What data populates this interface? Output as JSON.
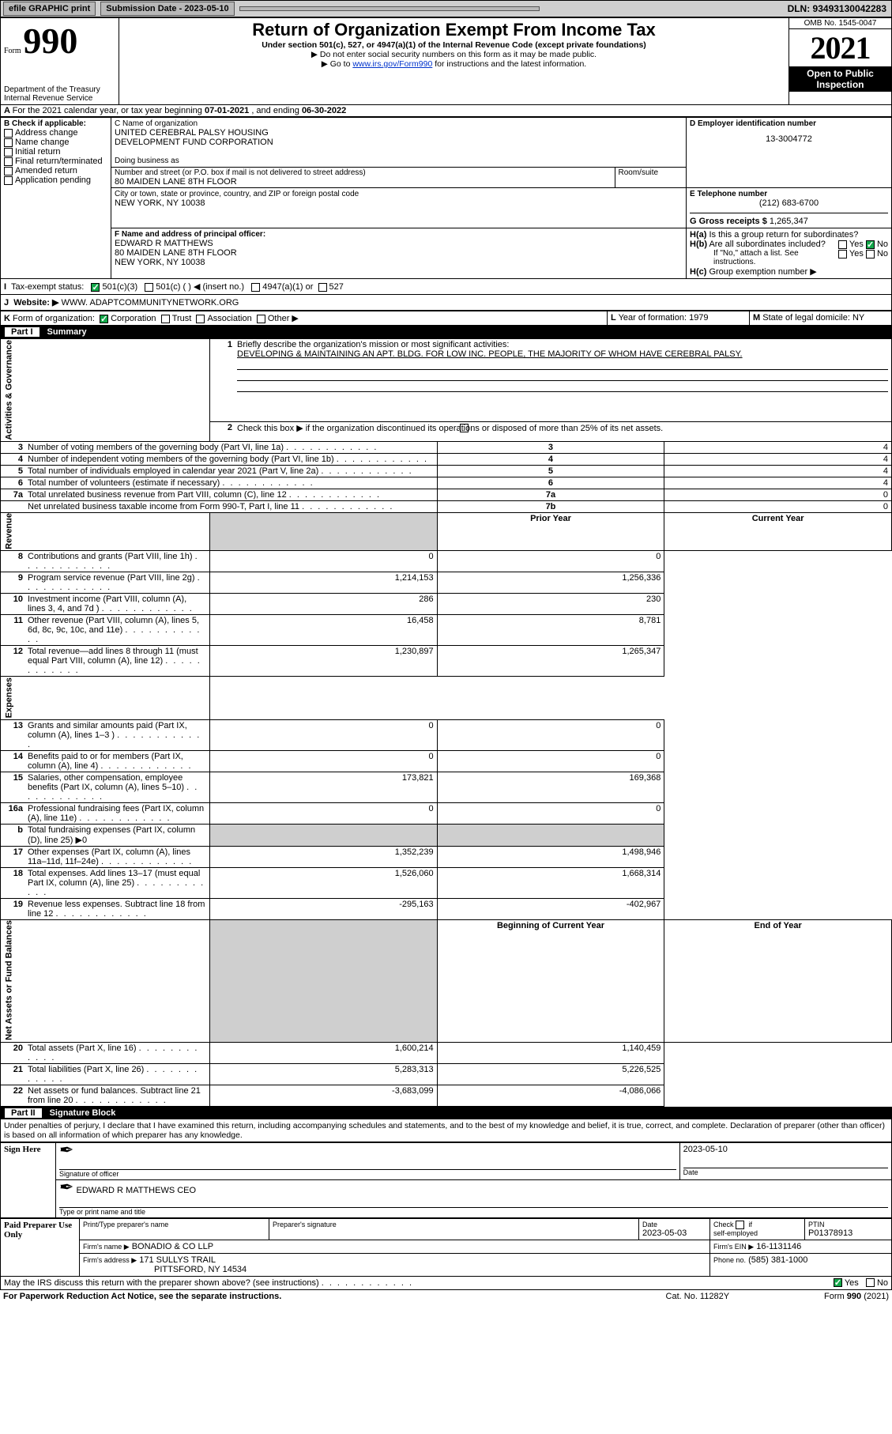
{
  "topbar": {
    "efile": "efile GRAPHIC print",
    "submission_lbl": "Submission Date - 2023-05-10",
    "dln_lbl": "DLN: 93493130042283"
  },
  "header": {
    "form_prefix": "Form",
    "form_num": "990",
    "dept": "Department of the Treasury",
    "irs": "Internal Revenue Service",
    "title": "Return of Organization Exempt From Income Tax",
    "sub1": "Under section 501(c), 527, or 4947(a)(1) of the Internal Revenue Code (except private foundations)",
    "sub2": "▶ Do not enter social security numbers on this form as it may be made public.",
    "sub3_pre": "▶ Go to ",
    "sub3_link": "www.irs.gov/Form990",
    "sub3_post": " for instructions and the latest information.",
    "omb": "OMB No. 1545-0047",
    "year": "2021",
    "open": "Open to Public Inspection"
  },
  "periodA": {
    "text_pre": "For the 2021 calendar year, or tax year beginning ",
    "begin": "07-01-2021",
    "mid": " , and ending ",
    "end": "06-30-2022"
  },
  "boxB": {
    "title": "B Check if applicable:",
    "items": [
      "Address change",
      "Name change",
      "Initial return",
      "Final return/terminated",
      "Amended return",
      "Application pending"
    ]
  },
  "boxC": {
    "lbl_name": "C Name of organization",
    "org1": "UNITED CEREBRAL PALSY HOUSING",
    "org2": "DEVELOPMENT FUND CORPORATION",
    "dba_lbl": "Doing business as",
    "street_lbl": "Number and street (or P.O. box if mail is not delivered to street address)",
    "room_lbl": "Room/suite",
    "street": "80 MAIDEN LANE 8TH FLOOR",
    "city_lbl": "City or town, state or province, country, and ZIP or foreign postal code",
    "city": "NEW YORK, NY  10038"
  },
  "boxD": {
    "lbl": "D Employer identification number",
    "val": "13-3004772"
  },
  "boxE": {
    "lbl": "E Telephone number",
    "val": "(212) 683-6700"
  },
  "boxG": {
    "lbl": "G Gross receipts $",
    "val": "1,265,347"
  },
  "boxF": {
    "lbl": "F  Name and address of principal officer:",
    "l1": "EDWARD R MATTHEWS",
    "l2": "80 MAIDEN LANE 8TH FLOOR",
    "l3": "NEW YORK, NY  10038"
  },
  "boxH": {
    "a_lbl_pre": "H(a)",
    "a_txt": "Is this a group return for subordinates?",
    "b_lbl_pre": "H(b)",
    "b_txt": "Are all subordinates included?",
    "ifno": "If \"No,\" attach a list. See instructions.",
    "c_lbl_pre": "H(c)",
    "c_txt": "Group exemption number ▶"
  },
  "rowI": {
    "lbl": "I",
    "txt": "Tax-exempt status:",
    "o1": "501(c)(3)",
    "o2": "501(c) (  ) ◀ (insert no.)",
    "o3": "4947(a)(1) or",
    "o4": "527"
  },
  "rowJ": {
    "lbl": "J",
    "pre": "Website: ▶ ",
    "val": "WWW. ADAPTCOMMUNITYNETWORK.ORG"
  },
  "rowK": {
    "lbl": "K",
    "txt": "Form of organization:",
    "o1": "Corporation",
    "o2": "Trust",
    "o3": "Association",
    "o4": "Other ▶"
  },
  "rowL": {
    "lbl": "L",
    "txt": "Year of formation: 1979"
  },
  "rowM": {
    "lbl": "M",
    "txt": "State of legal domicile: NY"
  },
  "part1": {
    "band_p": "Part I",
    "band_t": "Summary"
  },
  "p1": {
    "l1_lbl": "1",
    "l1_txt": "Briefly describe the organization's mission or most significant activities:",
    "l1_val": "DEVELOPING & MAINTAINING AN APT. BLDG. FOR LOW INC. PEOPLE, THE MAJORITY OF WHOM HAVE CEREBRAL PALSY.",
    "l2_lbl": "2",
    "l2_txt": "Check this box ▶        if the organization discontinued its operations or disposed of more than 25% of its net assets.",
    "rows_gov": [
      {
        "n": "3",
        "t": "Number of voting members of the governing body (Part VI, line 1a)",
        "box": "3",
        "v": "4"
      },
      {
        "n": "4",
        "t": "Number of independent voting members of the governing body (Part VI, line 1b)",
        "box": "4",
        "v": "4"
      },
      {
        "n": "5",
        "t": "Total number of individuals employed in calendar year 2021 (Part V, line 2a)",
        "box": "5",
        "v": "4"
      },
      {
        "n": "6",
        "t": "Total number of volunteers (estimate if necessary)",
        "box": "6",
        "v": "4"
      },
      {
        "n": "7a",
        "t": "Total unrelated business revenue from Part VIII, column (C), line 12",
        "box": "7a",
        "v": "0"
      },
      {
        "n": "",
        "t": "Net unrelated business taxable income from Form 990-T, Part I, line 11",
        "box": "7b",
        "v": "0"
      }
    ],
    "col_py": "Prior Year",
    "col_cy": "Current Year",
    "rows_rev": [
      {
        "n": "8",
        "t": "Contributions and grants (Part VIII, line 1h)",
        "py": "0",
        "cy": "0"
      },
      {
        "n": "9",
        "t": "Program service revenue (Part VIII, line 2g)",
        "py": "1,214,153",
        "cy": "1,256,336"
      },
      {
        "n": "10",
        "t": "Investment income (Part VIII, column (A), lines 3, 4, and 7d )",
        "py": "286",
        "cy": "230"
      },
      {
        "n": "11",
        "t": "Other revenue (Part VIII, column (A), lines 5, 6d, 8c, 9c, 10c, and 11e)",
        "py": "16,458",
        "cy": "8,781"
      },
      {
        "n": "12",
        "t": "Total revenue—add lines 8 through 11 (must equal Part VIII, column (A), line 12)",
        "py": "1,230,897",
        "cy": "1,265,347"
      }
    ],
    "rows_exp": [
      {
        "n": "13",
        "t": "Grants and similar amounts paid (Part IX, column (A), lines 1–3 )",
        "py": "0",
        "cy": "0"
      },
      {
        "n": "14",
        "t": "Benefits paid to or for members (Part IX, column (A), line 4)",
        "py": "0",
        "cy": "0"
      },
      {
        "n": "15",
        "t": "Salaries, other compensation, employee benefits (Part IX, column (A), lines 5–10)",
        "py": "173,821",
        "cy": "169,368"
      },
      {
        "n": "16a",
        "t": "Professional fundraising fees (Part IX, column (A), line 11e)",
        "py": "0",
        "cy": "0"
      },
      {
        "n": "b",
        "t": "Total fundraising expenses (Part IX, column (D), line 25) ▶0",
        "py": "",
        "cy": "",
        "shade": true
      },
      {
        "n": "17",
        "t": "Other expenses (Part IX, column (A), lines 11a–11d, 11f–24e)",
        "py": "1,352,239",
        "cy": "1,498,946"
      },
      {
        "n": "18",
        "t": "Total expenses. Add lines 13–17 (must equal Part IX, column (A), line 25)",
        "py": "1,526,060",
        "cy": "1,668,314"
      },
      {
        "n": "19",
        "t": "Revenue less expenses. Subtract line 18 from line 12",
        "py": "-295,163",
        "cy": "-402,967"
      }
    ],
    "col_boy": "Beginning of Current Year",
    "col_eoy": "End of Year",
    "rows_na": [
      {
        "n": "20",
        "t": "Total assets (Part X, line 16)",
        "py": "1,600,214",
        "cy": "1,140,459"
      },
      {
        "n": "21",
        "t": "Total liabilities (Part X, line 26)",
        "py": "5,283,313",
        "cy": "5,226,525"
      },
      {
        "n": "22",
        "t": "Net assets or fund balances. Subtract line 21 from line 20",
        "py": "-3,683,099",
        "cy": "-4,086,066"
      }
    ],
    "vlab_gov": "Activities & Governance",
    "vlab_rev": "Revenue",
    "vlab_exp": "Expenses",
    "vlab_na": "Net Assets or Fund Balances"
  },
  "part2": {
    "band_p": "Part II",
    "band_t": "Signature Block"
  },
  "sig": {
    "penalties": "Under penalties of perjury, I declare that I have examined this return, including accompanying schedules and statements, and to the best of my knowledge and belief, it is true, correct, and complete. Declaration of preparer (other than officer) is based on all information of which preparer has any knowledge.",
    "sign_here": "Sign Here",
    "sig_of_officer": "Signature of officer",
    "date_lbl": "Date",
    "sig_date": "2023-05-10",
    "officer_name": "EDWARD R MATTHEWS CEO",
    "officer_sub": "Type or print name and title",
    "paid_prep": "Paid Preparer Use Only",
    "col_pt_name": "Print/Type preparer's name",
    "col_pt_sig": "Preparer's signature",
    "col_pt_date_lbl": "Date",
    "col_pt_date": "2023-05-03",
    "col_pt_check": "Check       if self-employed",
    "col_ptin_lbl": "PTIN",
    "col_ptin": "P01378913",
    "firm_name_lbl": "Firm's name    ▶",
    "firm_name": "BONADIO & CO LLP",
    "firm_ein_lbl": "Firm's EIN ▶",
    "firm_ein": "16-1131146",
    "firm_addr_lbl": "Firm's address ▶",
    "firm_addr1": "171 SULLYS TRAIL",
    "firm_addr2": "PITTSFORD, NY  14534",
    "firm_phone_lbl": "Phone no.",
    "firm_phone": "(585) 381-1000",
    "discuss": "May the IRS discuss this return with the preparer shown above? (see instructions)",
    "yes": "Yes",
    "no": "No"
  },
  "footer": {
    "left": "For Paperwork Reduction Act Notice, see the separate instructions.",
    "mid": "Cat. No. 11282Y",
    "right_pre": "Form ",
    "right_b": "990",
    "right_post": " (2021)"
  }
}
